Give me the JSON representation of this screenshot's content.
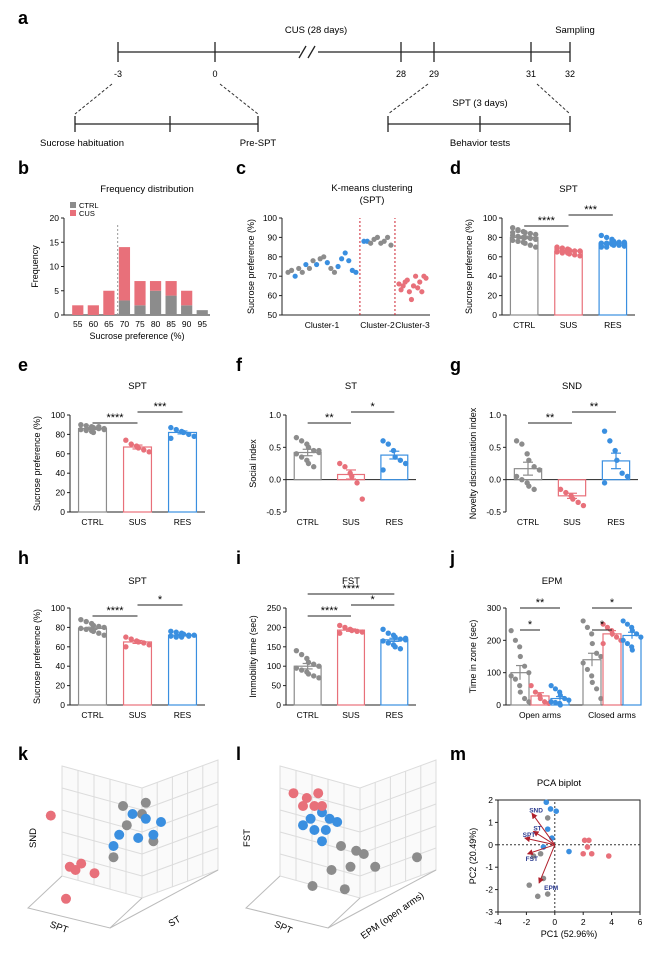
{
  "colors": {
    "ctrl": "#8c8c8c",
    "sus": "#e8707a",
    "res": "#3a8fe0",
    "axis": "#222222",
    "guide": "#cc1f2e"
  },
  "timeline": {
    "panel_label": "a",
    "cus_label": "CUS (28 days)",
    "sampling_label": "Sampling",
    "ticks": [
      "-3",
      "0",
      "28",
      "29",
      "31",
      "32"
    ],
    "sucrose_habituation": "Sucrose habituation",
    "pre_spt": "Pre-SPT",
    "spt_label": "SPT (3 days)",
    "behavior_tests": "Behavior tests"
  },
  "chart_data": [
    {
      "id": "b",
      "type": "bar",
      "panel_label": "b",
      "title": "Frequency distribution",
      "xlabel": "Sucrose preference (%)",
      "ylabel": "Frequency",
      "categories": [
        "55",
        "60",
        "65",
        "70",
        "75",
        "80",
        "85",
        "90",
        "95"
      ],
      "series": [
        {
          "name": "CTRL",
          "values": [
            0,
            0,
            0,
            3,
            2,
            5,
            4,
            2,
            1
          ]
        },
        {
          "name": "CUS",
          "values": [
            2,
            2,
            5,
            11,
            5,
            2,
            3,
            3,
            0
          ]
        }
      ],
      "ylim": [
        0,
        20
      ],
      "yticks": [
        "0",
        "5",
        "10",
        "15",
        "20"
      ],
      "legend": "top-left",
      "cutoff_category": "70"
    },
    {
      "id": "c",
      "type": "scatter",
      "panel_label": "c",
      "title": "K-means clustering",
      "subtitle": "(SPT)",
      "ylabel": "Sucrose preference (%)",
      "ylim": [
        50,
        100
      ],
      "yticks": [
        "50",
        "60",
        "70",
        "80",
        "90",
        "100"
      ],
      "clusters": [
        {
          "name": "Cluster-1",
          "values": [
            72,
            73,
            70,
            74,
            72,
            76,
            74,
            78,
            76,
            79,
            80,
            77,
            74,
            72,
            75,
            79,
            82,
            78,
            73,
            72
          ]
        },
        {
          "name": "Cluster-2",
          "values": [
            88,
            88,
            87,
            89,
            90,
            87,
            88,
            90,
            86
          ]
        },
        {
          "name": "Cluster-3",
          "values": [
            66,
            63,
            65,
            67,
            68,
            62,
            58,
            65,
            70,
            64,
            67,
            62,
            70,
            69
          ]
        }
      ]
    },
    {
      "id": "d",
      "type": "bar",
      "panel_label": "d",
      "title": "SPT",
      "ylabel": "Sucrose preference (%)",
      "ylim": [
        0,
        100
      ],
      "yticks": [
        "0",
        "20",
        "40",
        "60",
        "80",
        "100"
      ],
      "categories": [
        "CTRL",
        "SUS",
        "RES"
      ],
      "values": [
        80,
        66,
        74
      ],
      "sem": [
        1.2,
        1.0,
        1.0
      ],
      "points": [
        [
          90,
          88,
          86,
          85,
          84,
          83,
          82,
          81,
          80,
          80,
          79,
          78,
          77,
          76,
          75,
          74,
          72,
          70,
          85,
          87
        ],
        [
          70,
          69,
          68,
          67,
          66,
          66,
          65,
          64,
          64,
          63,
          62,
          61,
          68,
          66,
          67
        ],
        [
          82,
          80,
          78,
          76,
          75,
          75,
          74,
          73,
          73,
          72,
          72,
          71,
          70,
          70,
          76,
          74,
          73,
          72,
          71,
          74
        ]
      ],
      "significance": [
        {
          "from": 0,
          "to": 1,
          "label": "****"
        },
        {
          "from": 1,
          "to": 2,
          "label": "***"
        }
      ]
    },
    {
      "id": "e",
      "type": "bar",
      "panel_label": "e",
      "title": "SPT",
      "ylabel": "Sucrose preference (%)",
      "ylim": [
        0,
        100
      ],
      "yticks": [
        "0",
        "20",
        "40",
        "60",
        "80",
        "100"
      ],
      "categories": [
        "CTRL",
        "SUS",
        "RES"
      ],
      "values": [
        86,
        67,
        82
      ],
      "sem": [
        1.0,
        2.0,
        1.5
      ],
      "points": [
        [
          90,
          89,
          88,
          87,
          86,
          86,
          85,
          84,
          83,
          82,
          88,
          85
        ],
        [
          74,
          70,
          68,
          66,
          64,
          62
        ],
        [
          87,
          85,
          83,
          82,
          80,
          78,
          76
        ]
      ],
      "significance": [
        {
          "from": 0,
          "to": 1,
          "label": "****"
        },
        {
          "from": 1,
          "to": 2,
          "label": "***"
        }
      ]
    },
    {
      "id": "f",
      "type": "bar",
      "panel_label": "f",
      "title": "ST",
      "ylabel": "Social index",
      "ylim": [
        -0.5,
        1.0
      ],
      "yticks": [
        "-0.5",
        "0.0",
        "0.5",
        "1.0"
      ],
      "categories": [
        "CTRL",
        "SUS",
        "RES"
      ],
      "values": [
        0.42,
        0.08,
        0.38
      ],
      "sem": [
        0.05,
        0.07,
        0.06
      ],
      "points": [
        [
          0.65,
          0.6,
          0.55,
          0.5,
          0.45,
          0.42,
          0.4,
          0.35,
          0.3,
          0.25,
          0.2,
          0.45
        ],
        [
          0.25,
          0.2,
          0.1,
          0.05,
          -0.05,
          -0.3
        ],
        [
          0.6,
          0.55,
          0.45,
          0.35,
          0.3,
          0.25,
          0.15
        ]
      ],
      "significance": [
        {
          "from": 0,
          "to": 1,
          "label": "**"
        },
        {
          "from": 1,
          "to": 2,
          "label": "*"
        }
      ]
    },
    {
      "id": "g",
      "type": "bar",
      "panel_label": "g",
      "title": "SND",
      "ylabel": "Novelty  discrimination index",
      "ylim": [
        -0.5,
        1.0
      ],
      "yticks": [
        "-0.5",
        "0.0",
        "0.5",
        "1.0"
      ],
      "categories": [
        "CTRL",
        "SUS",
        "RES"
      ],
      "values": [
        0.17,
        -0.25,
        0.29
      ],
      "sem": [
        0.1,
        0.04,
        0.12
      ],
      "points": [
        [
          0.6,
          0.55,
          0.4,
          0.3,
          0.2,
          0.15,
          0.05,
          0.0,
          -0.05,
          -0.1,
          -0.15
        ],
        [
          -0.15,
          -0.2,
          -0.25,
          -0.3,
          -0.35,
          -0.4
        ],
        [
          0.75,
          0.6,
          0.45,
          0.3,
          0.1,
          0.05,
          -0.05
        ]
      ],
      "significance": [
        {
          "from": 0,
          "to": 1,
          "label": "**"
        },
        {
          "from": 1,
          "to": 2,
          "label": "**"
        }
      ]
    },
    {
      "id": "h",
      "type": "bar",
      "panel_label": "h",
      "title": "SPT",
      "ylabel": "Sucrose preference (%)",
      "ylim": [
        0,
        100
      ],
      "yticks": [
        "0",
        "20",
        "40",
        "60",
        "80",
        "100"
      ],
      "categories": [
        "CTRL",
        "SUS",
        "RES"
      ],
      "values": [
        79,
        65,
        72
      ],
      "sem": [
        1.2,
        1.5,
        0.8
      ],
      "points": [
        [
          88,
          86,
          84,
          82,
          81,
          80,
          79,
          78,
          77,
          76,
          74,
          72
        ],
        [
          70,
          68,
          66,
          65,
          64,
          62,
          60
        ],
        [
          76,
          75,
          74,
          73,
          72,
          72,
          71,
          70,
          70,
          73,
          71
        ]
      ],
      "significance": [
        {
          "from": 0,
          "to": 1,
          "label": "****"
        },
        {
          "from": 1,
          "to": 2,
          "label": "*"
        }
      ]
    },
    {
      "id": "i",
      "type": "bar",
      "panel_label": "i",
      "title": "FST",
      "ylabel": "Immobility time (sec)",
      "ylim": [
        0,
        250
      ],
      "yticks": [
        "0",
        "50",
        "100",
        "150",
        "200",
        "250"
      ],
      "categories": [
        "CTRL",
        "SUS",
        "RES"
      ],
      "values": [
        100,
        193,
        168
      ],
      "sem": [
        7,
        3,
        4
      ],
      "points": [
        [
          140,
          130,
          120,
          110,
          105,
          100,
          95,
          90,
          85,
          80,
          75,
          70
        ],
        [
          205,
          200,
          195,
          192,
          190,
          188,
          185
        ],
        [
          195,
          185,
          180,
          175,
          170,
          168,
          165,
          160,
          155,
          150,
          145,
          172
        ]
      ],
      "significance": [
        {
          "from": 0,
          "to": 1,
          "label": "****"
        },
        {
          "from": 1,
          "to": 2,
          "label": "*"
        },
        {
          "from": 0,
          "to": 2,
          "label": "****"
        }
      ]
    },
    {
      "id": "j",
      "type": "bar",
      "panel_label": "j",
      "title": "EPM",
      "ylabel": "Time in zone (sec)",
      "ylim": [
        0,
        300
      ],
      "yticks": [
        "0",
        "100",
        "200",
        "300"
      ],
      "groups": [
        "Open arms",
        "Closed arms"
      ],
      "categories": [
        "CTRL",
        "SUS",
        "RES"
      ],
      "values": [
        [
          100,
          28,
          20
        ],
        [
          140,
          220,
          215
        ]
      ],
      "sem": [
        [
          22,
          10,
          6
        ],
        [
          20,
          10,
          10
        ]
      ],
      "points": [
        [
          [
            230,
            200,
            180,
            150,
            120,
            100,
            90,
            80,
            60,
            40,
            20,
            10
          ],
          [
            60,
            40,
            30,
            20,
            10,
            5
          ],
          [
            60,
            50,
            40,
            30,
            20,
            15,
            10,
            8,
            5,
            0
          ]
        ],
        [
          [
            260,
            240,
            220,
            190,
            160,
            150,
            130,
            110,
            90,
            70,
            50,
            20
          ],
          [
            250,
            240,
            230,
            220,
            210,
            200,
            190
          ],
          [
            260,
            250,
            240,
            230,
            220,
            210,
            200,
            190,
            180,
            170
          ]
        ]
      ],
      "significance": [
        {
          "group": 0,
          "from": 0,
          "to": 1,
          "label": "*"
        },
        {
          "group": 0,
          "from": 0,
          "to": 2,
          "label": "**"
        },
        {
          "group": 1,
          "from": 0,
          "to": 1,
          "label": "*"
        },
        {
          "group": 1,
          "from": 0,
          "to": 2,
          "label": "*"
        }
      ]
    },
    {
      "id": "k",
      "type": "scatter",
      "panel_label": "k",
      "projection": "3d",
      "axes": [
        "SPT",
        "ST",
        "SND"
      ],
      "points": {
        "ctrl": [
          [
            0.45,
            0.62
          ],
          [
            0.5,
            0.3
          ],
          [
            0.52,
            0.42
          ],
          [
            0.6,
            0.35
          ],
          [
            0.62,
            0.28
          ],
          [
            0.66,
            0.52
          ]
        ],
        "sus": [
          [
            0.12,
            0.36
          ],
          [
            0.22,
            0.68
          ],
          [
            0.25,
            0.7
          ],
          [
            0.28,
            0.66
          ],
          [
            0.35,
            0.72
          ],
          [
            0.2,
            0.88
          ]
        ],
        "res": [
          [
            0.55,
            0.35
          ],
          [
            0.58,
            0.5
          ],
          [
            0.62,
            0.38
          ],
          [
            0.66,
            0.48
          ],
          [
            0.7,
            0.4
          ],
          [
            0.45,
            0.55
          ],
          [
            0.48,
            0.48
          ]
        ]
      }
    },
    {
      "id": "l",
      "type": "scatter",
      "panel_label": "l",
      "projection": "3d",
      "axes": [
        "SPT",
        "EPM (open arms)",
        "FST"
      ],
      "points": {
        "ctrl": [
          [
            0.5,
            0.55
          ],
          [
            0.58,
            0.58
          ],
          [
            0.62,
            0.6
          ],
          [
            0.55,
            0.68
          ],
          [
            0.45,
            0.7
          ],
          [
            0.35,
            0.8
          ],
          [
            0.52,
            0.82
          ],
          [
            0.9,
            0.62
          ],
          [
            0.68,
            0.68
          ]
        ],
        "sus": [
          [
            0.25,
            0.22
          ],
          [
            0.32,
            0.25
          ],
          [
            0.38,
            0.22
          ],
          [
            0.3,
            0.3
          ],
          [
            0.36,
            0.3
          ],
          [
            0.4,
            0.3
          ]
        ],
        "res": [
          [
            0.34,
            0.38
          ],
          [
            0.4,
            0.34
          ],
          [
            0.44,
            0.38
          ],
          [
            0.36,
            0.45
          ],
          [
            0.42,
            0.45
          ],
          [
            0.48,
            0.4
          ],
          [
            0.4,
            0.52
          ],
          [
            0.3,
            0.42
          ]
        ]
      }
    },
    {
      "id": "m",
      "type": "scatter",
      "panel_label": "m",
      "title": "PCA biplot",
      "xlabel": "PC1 (52.96%)",
      "ylabel": "PC2 (20.49%)",
      "xlim": [
        -4,
        6
      ],
      "ylim": [
        -3,
        2
      ],
      "xticks": [
        "-4",
        "-2",
        "0",
        "2",
        "4",
        "6"
      ],
      "yticks": [
        "-3",
        "-2",
        "-1",
        "0",
        "1",
        "2"
      ],
      "loadings": [
        {
          "name": "SND",
          "x": -1.6,
          "y": 1.4
        },
        {
          "name": "ST",
          "x": -1.5,
          "y": 0.6
        },
        {
          "name": "SPT",
          "x": -2.1,
          "y": 0.3
        },
        {
          "name": "FST",
          "x": -1.9,
          "y": -0.4
        },
        {
          "name": "EPM",
          "x": -1.1,
          "y": -1.7
        }
      ],
      "points": {
        "ctrl": [
          [
            -0.5,
            1.2
          ],
          [
            -1.0,
            -0.4
          ],
          [
            -1.5,
            -0.5
          ],
          [
            -0.8,
            -1.5
          ],
          [
            -1.2,
            -2.3
          ],
          [
            -0.5,
            -2.2
          ],
          [
            -1.8,
            -1.8
          ]
        ],
        "sus": [
          [
            2.1,
            0.2
          ],
          [
            2.4,
            0.2
          ],
          [
            2.3,
            -0.1
          ],
          [
            2.0,
            -0.4
          ],
          [
            2.6,
            -0.4
          ],
          [
            3.8,
            -0.5
          ]
        ],
        "res": [
          [
            -0.6,
            1.9
          ],
          [
            -0.3,
            1.6
          ],
          [
            0.1,
            1.5
          ],
          [
            -0.5,
            0.7
          ],
          [
            -0.2,
            0.3
          ],
          [
            1.0,
            -0.3
          ],
          [
            -0.8,
            -0.1
          ]
        ]
      }
    }
  ]
}
